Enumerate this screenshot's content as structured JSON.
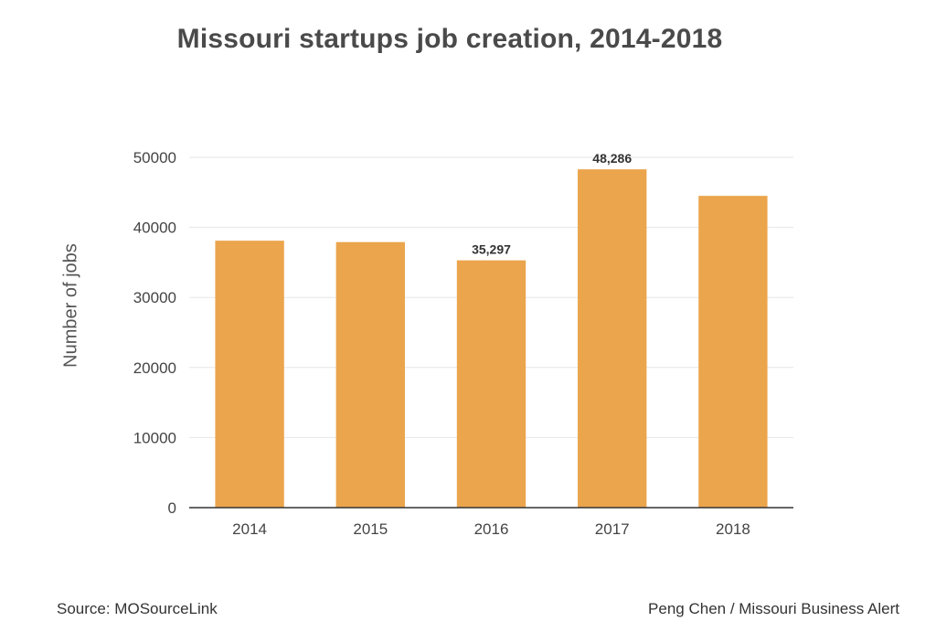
{
  "chart_data": {
    "type": "bar",
    "title": "Missouri startups job creation, 2014-2018",
    "ylabel": "Number of jobs",
    "xlabel": "",
    "categories": [
      "2014",
      "2015",
      "2016",
      "2017",
      "2018"
    ],
    "values": [
      38100,
      37900,
      35297,
      48286,
      44500
    ],
    "data_labels": [
      "",
      "",
      "35,297",
      "48,286",
      ""
    ],
    "ylim": [
      0,
      50000
    ],
    "yticks": [
      0,
      10000,
      20000,
      30000,
      40000,
      50000
    ],
    "ytick_labels": [
      "0",
      "10000",
      "20000",
      "30000",
      "40000",
      "50000"
    ],
    "grid": true,
    "bar_color": "#eba54d",
    "grid_color": "#e6e6e6",
    "axis_color": "#333333"
  },
  "footer": {
    "source": "Source: MOSourceLink",
    "credit": "Peng Chen / Missouri Business Alert"
  }
}
